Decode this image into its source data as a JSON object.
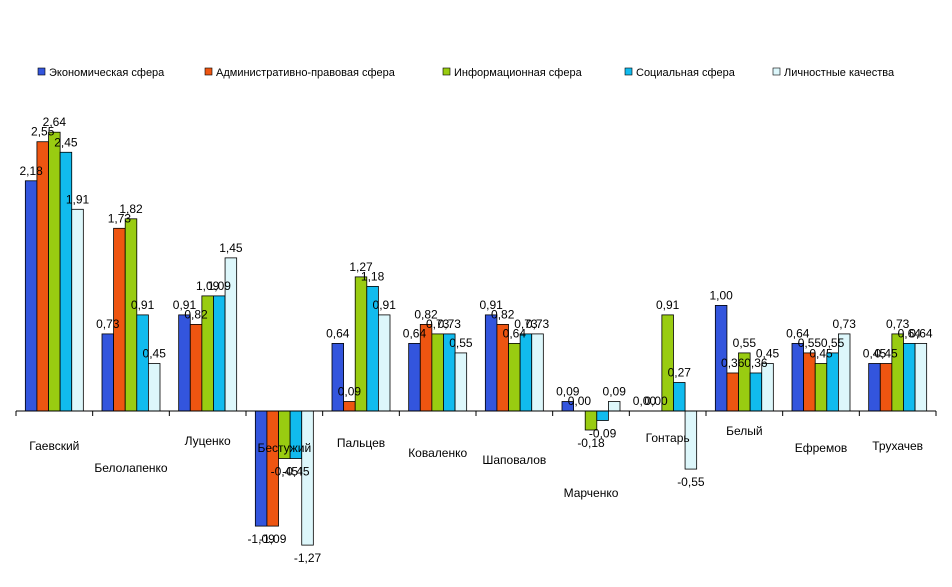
{
  "chart_data": {
    "type": "bar",
    "title": "",
    "xlabel": "",
    "ylabel": "",
    "ylim": [
      -1.3,
      2.8
    ],
    "grid": false,
    "legend_position": "top",
    "categories": [
      "Гаевский",
      "Белолапенко",
      "Луценко",
      "Бестужий",
      "Пальцев",
      "Коваленко",
      "Шаповалов",
      "Марченко",
      "Гонтарь",
      "Белый",
      "Ефремов",
      "Трухачев"
    ],
    "series": [
      {
        "name": "Экономическая сфера",
        "color": "#3355dd",
        "values": [
          2.18,
          0.73,
          0.91,
          -1.09,
          0.64,
          0.64,
          0.91,
          0.09,
          0.0,
          1.0,
          0.64,
          0.45
        ]
      },
      {
        "name": "Административно-правовая сфера",
        "color": "#ee5511",
        "values": [
          2.55,
          1.73,
          0.82,
          -1.09,
          0.09,
          0.82,
          0.82,
          0.0,
          0.0,
          0.36,
          0.55,
          0.45
        ]
      },
      {
        "name": "Информационная сфера",
        "color": "#99cc11",
        "values": [
          2.64,
          1.82,
          1.09,
          -0.45,
          1.27,
          0.73,
          0.64,
          -0.18,
          0.91,
          0.55,
          0.45,
          0.73
        ]
      },
      {
        "name": "Социальная сфера",
        "color": "#11bbee",
        "values": [
          2.45,
          0.91,
          1.09,
          -0.45,
          1.18,
          0.73,
          0.73,
          -0.09,
          0.27,
          0.36,
          0.55,
          0.64
        ]
      },
      {
        "name": "Личностные качества",
        "color": "#ddf7fb",
        "values": [
          1.91,
          0.45,
          1.45,
          -1.27,
          0.91,
          0.55,
          0.73,
          0.09,
          -0.55,
          0.45,
          0.73,
          0.64
        ]
      }
    ],
    "value_labels": [
      [
        "2,18",
        "2,55",
        "2,64",
        "2,45",
        "1,91"
      ],
      [
        "0,73",
        "1,73",
        "1,82",
        "0,91",
        "0,45"
      ],
      [
        "0,91",
        "0,82",
        "1,09",
        "1,09",
        "1,45"
      ],
      [
        "-1,09",
        "-1,09",
        "-0,45",
        "-0,45",
        "-1,27"
      ],
      [
        "0,64",
        "0,09",
        "1,27",
        "1,18",
        "0,91"
      ],
      [
        "0,64",
        "0,82",
        "0,73",
        "0,73",
        "0,55"
      ],
      [
        "0,91",
        "0,82",
        "0,64",
        "0,73",
        "0,73"
      ],
      [
        "0,09",
        "0,00",
        "-0,18",
        "-0,09",
        "0,09"
      ],
      [
        "0,00",
        "0,00",
        "0,91",
        "0,27",
        "-0,55"
      ],
      [
        "1,00",
        "0,36",
        "0,55",
        "0,36",
        "0,45"
      ],
      [
        "0,64",
        "0,55",
        "0,45",
        "0,55",
        "0,73"
      ],
      [
        "0,45",
        "0,45",
        "0,73",
        "0,64",
        "0,64"
      ]
    ]
  }
}
